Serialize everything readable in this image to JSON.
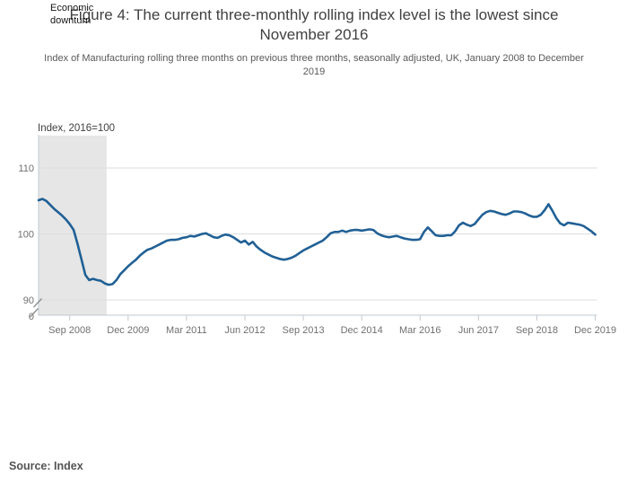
{
  "figure": {
    "title": "Figure 4: The current three-monthly rolling index level is the lowest since November 2016",
    "subtitle": "Index of Manufacturing rolling three months on previous three months, seasonally adjusted, UK, January 2008 to December 2019",
    "source": "Source: Index"
  },
  "chart_data": {
    "type": "line",
    "title": "Index, 2016=100",
    "x_start": "Jan 2008",
    "x_end": "Dec 2019",
    "frequency": "monthly",
    "n_points": 144,
    "grid": true,
    "legend_position": "none",
    "y_axis_break_between": [
      0,
      90
    ],
    "ylim_main": [
      90,
      113
    ],
    "x_ticks": [
      {
        "label": "Sep 2008",
        "month_index": 8
      },
      {
        "label": "Dec 2009",
        "month_index": 23
      },
      {
        "label": "Mar 2011",
        "month_index": 38
      },
      {
        "label": "Jun 2012",
        "month_index": 53
      },
      {
        "label": "Sep 2013",
        "month_index": 68
      },
      {
        "label": "Dec 2014",
        "month_index": 83
      },
      {
        "label": "Mar 2016",
        "month_index": 98
      },
      {
        "label": "Jun 2017",
        "month_index": 113
      },
      {
        "label": "Sep 2018",
        "month_index": 128
      },
      {
        "label": "Dec 2019",
        "month_index": 143
      }
    ],
    "y_ticks": [
      {
        "label": "110",
        "value": 110,
        "gridline": true
      },
      {
        "label": "100",
        "value": 100,
        "gridline": true
      },
      {
        "label": "90",
        "value": 90,
        "gridline": true
      },
      {
        "label": "0",
        "value": 0,
        "gridline": false,
        "below_break": true
      }
    ],
    "shading": {
      "label": "Economic downturn",
      "from_month_index": 0,
      "to_month_index": 17.5,
      "color": "#e6e6e6"
    },
    "series": [
      {
        "name": "Index of Manufacturing, rolling three months on previous three months",
        "color": "#206095",
        "values": [
          105.1,
          105.3,
          105.0,
          104.4,
          103.8,
          103.3,
          102.8,
          102.2,
          101.5,
          100.6,
          98.5,
          96.2,
          93.8,
          93.0,
          93.2,
          93.0,
          92.9,
          92.5,
          92.3,
          92.4,
          93.0,
          93.9,
          94.5,
          95.1,
          95.6,
          96.1,
          96.7,
          97.2,
          97.6,
          97.8,
          98.1,
          98.4,
          98.7,
          99.0,
          99.1,
          99.1,
          99.2,
          99.4,
          99.5,
          99.7,
          99.6,
          99.8,
          100.0,
          100.1,
          99.8,
          99.5,
          99.4,
          99.7,
          99.9,
          99.8,
          99.5,
          99.1,
          98.7,
          99.0,
          98.4,
          98.8,
          98.1,
          97.6,
          97.2,
          96.9,
          96.6,
          96.4,
          96.2,
          96.1,
          96.2,
          96.4,
          96.7,
          97.1,
          97.5,
          97.8,
          98.1,
          98.4,
          98.7,
          99.0,
          99.5,
          100.1,
          100.3,
          100.3,
          100.5,
          100.3,
          100.5,
          100.6,
          100.6,
          100.5,
          100.6,
          100.7,
          100.6,
          100.1,
          99.8,
          99.6,
          99.5,
          99.6,
          99.7,
          99.5,
          99.3,
          99.2,
          99.1,
          99.1,
          99.2,
          100.3,
          101.0,
          100.4,
          99.8,
          99.7,
          99.7,
          99.8,
          99.8,
          100.4,
          101.3,
          101.7,
          101.4,
          101.2,
          101.5,
          102.2,
          102.9,
          103.3,
          103.5,
          103.4,
          103.2,
          103.0,
          102.9,
          103.1,
          103.4,
          103.4,
          103.3,
          103.1,
          102.8,
          102.6,
          102.6,
          102.9,
          103.6,
          104.5,
          103.5,
          102.4,
          101.6,
          101.3,
          101.7,
          101.6,
          101.5,
          101.4,
          101.2,
          100.8,
          100.4,
          99.9
        ]
      }
    ],
    "colors": {
      "gridline": "#dadde0",
      "axis": "#c2cad1",
      "tick_label": "#707070",
      "axis_title": "#404040"
    }
  }
}
